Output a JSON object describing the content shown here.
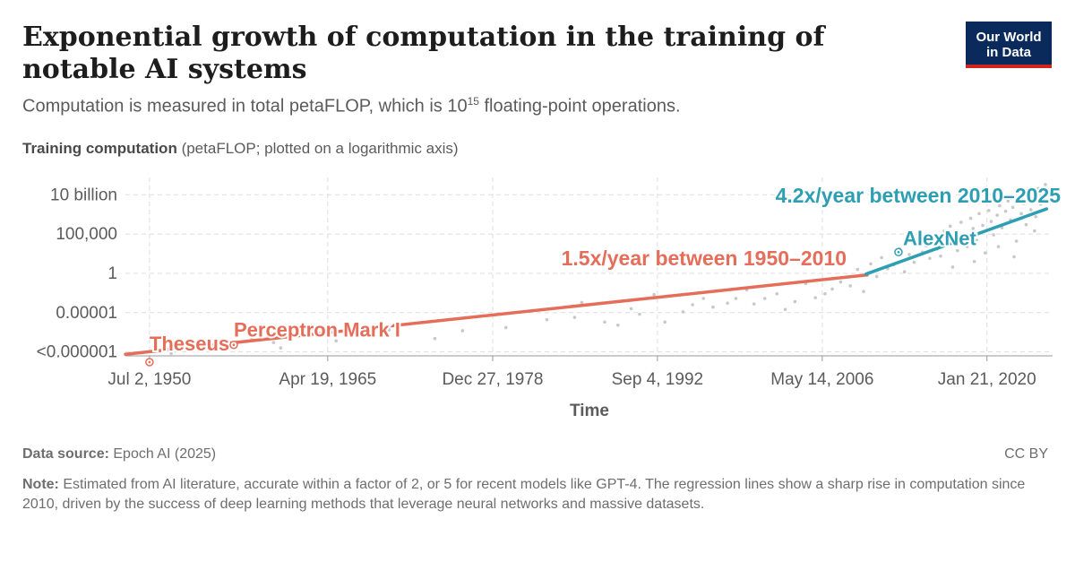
{
  "header": {
    "title": "Exponential growth of computation in the training of notable AI systems",
    "subtitle_main": "Computation is measured in total petaFLOP, which is 10",
    "subtitle_sup": "15",
    "subtitle_tail": " floating-point operations.",
    "logo_line1": "Our World",
    "logo_line2": "in Data"
  },
  "axis_heading": {
    "bold": "Training computation",
    "rest": " (petaFLOP; plotted on a logarithmic axis)"
  },
  "footer": {
    "source_label": "Data source:",
    "source_text": " Epoch AI (2025)",
    "license": "CC BY",
    "note_label": "Note:",
    "note_text": " Estimated from AI literature, accurate within a factor of 2, or 5 for recent models like GPT-4. The regression lines show a sharp rise in computation since 2010, driven by the success of deep learning methods that leverage neural networks and massive datasets."
  },
  "colors": {
    "trend_1950": "#e56e5a",
    "trend_2010": "#2e9fb3",
    "points": "#c8c8c8",
    "grid": "#dddddd"
  },
  "chart_data": {
    "type": "scatter",
    "scale_y": "log",
    "xlabel": "Time",
    "x_ticks": [
      {
        "label": "Jul 2, 1950",
        "value": 1950.5
      },
      {
        "label": "Apr 19, 1965",
        "value": 1965.3
      },
      {
        "label": "Dec 27, 1978",
        "value": 1979.0
      },
      {
        "label": "Sep 4, 1992",
        "value": 1992.68
      },
      {
        "label": "May 14, 2006",
        "value": 2006.37
      },
      {
        "label": "Jan 21, 2020",
        "value": 2020.05
      }
    ],
    "y_ticks": [
      {
        "label": "10 billion",
        "log10": 10
      },
      {
        "label": "100,000",
        "log10": 5
      },
      {
        "label": "1",
        "log10": 0
      },
      {
        "label": "0.00001",
        "log10": -5
      },
      {
        "label": "<0.000001",
        "log10": -10
      }
    ],
    "xlim": [
      1948.5,
      2025.5
    ],
    "ylim_log10": [
      -10.5,
      12.2
    ],
    "trend_lines": [
      {
        "label": "1.5x/year between 1950–2010",
        "color": "#e56e5a",
        "points": [
          [
            1948.5,
            -10.3
          ],
          [
            2010.1,
            -0.2
          ]
        ]
      },
      {
        "label": "4.2x/year between 2010–2025",
        "color": "#2e9fb3",
        "points": [
          [
            2010.0,
            -0.1
          ],
          [
            2025.0,
            8.2
          ]
        ]
      }
    ],
    "labeled_systems": [
      {
        "name": "Theseus",
        "x": 1950.5,
        "log10": -13.0,
        "color": "#e56e5a"
      },
      {
        "name": "Perceptron Mark I",
        "x": 1957.5,
        "log10": -9.1,
        "color": "#e56e5a"
      },
      {
        "name": "AlexNet",
        "x": 2012.7,
        "log10": 2.7,
        "color": "#2e9fb3"
      }
    ],
    "scatter_points": [
      [
        1952.3,
        -10.2
      ],
      [
        1955.4,
        -9.4
      ],
      [
        1959.0,
        -8.3
      ],
      [
        1960.8,
        -8.8
      ],
      [
        1961.4,
        -9.5
      ],
      [
        1962.1,
        -8.1
      ],
      [
        1966.0,
        -8.6
      ],
      [
        1970.4,
        -7.2
      ],
      [
        1974.2,
        -8.3
      ],
      [
        1976.5,
        -7.3
      ],
      [
        1980.1,
        -6.9
      ],
      [
        1983.5,
        -5.9
      ],
      [
        1985.8,
        -5.6
      ],
      [
        1986.4,
        -3.7
      ],
      [
        1988.3,
        -6.2
      ],
      [
        1989.4,
        -6.6
      ],
      [
        1990.5,
        -4.5
      ],
      [
        1991.2,
        -5.2
      ],
      [
        1992.4,
        -2.7
      ],
      [
        1993.3,
        -6.2
      ],
      [
        1994.8,
        -4.9
      ],
      [
        1995.6,
        -4.0
      ],
      [
        1996.5,
        -3.2
      ],
      [
        1997.3,
        -4.3
      ],
      [
        1998.5,
        -3.8
      ],
      [
        1999.2,
        -3.2
      ],
      [
        2000.1,
        -2.1
      ],
      [
        2000.7,
        -3.9
      ],
      [
        2001.6,
        -3.2
      ],
      [
        2002.6,
        -2.6
      ],
      [
        2003.3,
        -4.6
      ],
      [
        2004.1,
        -3.6
      ],
      [
        2005.0,
        -1.3
      ],
      [
        2005.8,
        -3.1
      ],
      [
        2006.6,
        -2.6
      ],
      [
        2007.2,
        -2.0
      ],
      [
        2007.9,
        -1.1
      ],
      [
        2008.7,
        -1.6
      ],
      [
        2009.3,
        0.5
      ],
      [
        2009.8,
        -2.3
      ],
      [
        2010.4,
        1.2
      ],
      [
        2010.9,
        -0.4
      ],
      [
        2011.3,
        2.0
      ],
      [
        2011.8,
        0.6
      ],
      [
        2012.3,
        1.1
      ],
      [
        2012.8,
        3.1
      ],
      [
        2013.2,
        0.2
      ],
      [
        2013.6,
        2.4
      ],
      [
        2014.0,
        1.4
      ],
      [
        2014.3,
        4.2
      ],
      [
        2014.7,
        2.7
      ],
      [
        2015.0,
        3.5
      ],
      [
        2015.3,
        1.9
      ],
      [
        2015.6,
        4.8
      ],
      [
        2015.9,
        3.1
      ],
      [
        2016.2,
        2.2
      ],
      [
        2016.5,
        5.4
      ],
      [
        2016.8,
        3.7
      ],
      [
        2017.0,
        6.0
      ],
      [
        2017.3,
        4.4
      ],
      [
        2017.6,
        2.9
      ],
      [
        2017.9,
        6.5
      ],
      [
        2018.1,
        5.0
      ],
      [
        2018.4,
        3.4
      ],
      [
        2018.7,
        7.0
      ],
      [
        2018.9,
        5.7
      ],
      [
        2019.2,
        4.2
      ],
      [
        2019.4,
        7.6
      ],
      [
        2019.7,
        6.1
      ],
      [
        2019.9,
        2.6
      ],
      [
        2020.2,
        8.0
      ],
      [
        2020.4,
        6.6
      ],
      [
        2020.6,
        4.9
      ],
      [
        2020.9,
        7.4
      ],
      [
        2021.1,
        8.6
      ],
      [
        2021.3,
        5.8
      ],
      [
        2021.6,
        7.9
      ],
      [
        2021.8,
        9.2
      ],
      [
        2022.0,
        6.8
      ],
      [
        2022.2,
        8.4
      ],
      [
        2022.5,
        4.1
      ],
      [
        2022.7,
        9.7
      ],
      [
        2022.9,
        7.6
      ],
      [
        2023.1,
        8.9
      ],
      [
        2023.3,
        6.2
      ],
      [
        2023.5,
        10.3
      ],
      [
        2023.7,
        8.1
      ],
      [
        2023.9,
        9.5
      ],
      [
        2024.1,
        7.2
      ],
      [
        2024.3,
        10.8
      ],
      [
        2024.5,
        8.8
      ],
      [
        2024.7,
        9.9
      ],
      [
        2024.9,
        11.3
      ],
      [
        2025.1,
        9.1
      ],
      [
        2025.2,
        10.6
      ],
      [
        2019.0,
        1.5
      ],
      [
        2021.0,
        3.4
      ],
      [
        2017.2,
        0.8
      ],
      [
        2022.3,
        2.1
      ],
      [
        2024.0,
        5.4
      ]
    ]
  }
}
